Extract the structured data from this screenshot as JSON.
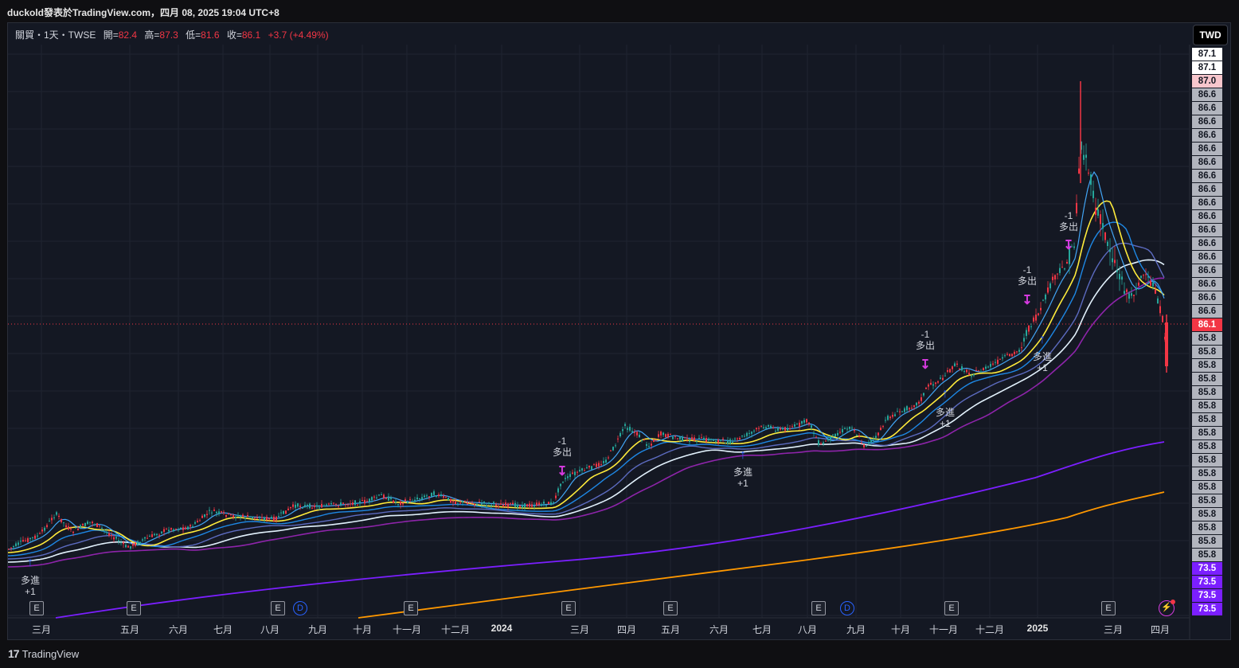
{
  "header": {
    "caption": "duckold發表於TradingView.com，四月 08, 2025 19:04 UTC+8"
  },
  "legend": {
    "symbol": "關貿・1天・TWSE",
    "open_label": "開=",
    "open_value": "82.4",
    "high_label": "高=",
    "high_value": "87.3",
    "low_label": "低=",
    "low_value": "81.6",
    "close_label": "收=",
    "close_value": "86.1",
    "change": "+3.7 (+4.49%)"
  },
  "currency_button": "TWD",
  "price_axis": {
    "labels": [
      {
        "text": "87.1",
        "style": "white"
      },
      {
        "text": "87.1",
        "style": "white"
      },
      {
        "text": "87.0",
        "style": "pink"
      },
      {
        "text": "86.6",
        "style": "grey"
      },
      {
        "text": "86.6",
        "style": "grey"
      },
      {
        "text": "86.6",
        "style": "grey"
      },
      {
        "text": "86.6",
        "style": "grey"
      },
      {
        "text": "86.6",
        "style": "grey"
      },
      {
        "text": "86.6",
        "style": "grey"
      },
      {
        "text": "86.6",
        "style": "grey"
      },
      {
        "text": "86.6",
        "style": "grey"
      },
      {
        "text": "86.6",
        "style": "grey"
      },
      {
        "text": "86.6",
        "style": "grey"
      },
      {
        "text": "86.6",
        "style": "grey"
      },
      {
        "text": "86.6",
        "style": "grey"
      },
      {
        "text": "86.6",
        "style": "grey"
      },
      {
        "text": "86.6",
        "style": "grey"
      },
      {
        "text": "86.6",
        "style": "grey"
      },
      {
        "text": "86.6",
        "style": "grey"
      },
      {
        "text": "86.6",
        "style": "grey"
      },
      {
        "text": "86.1",
        "style": "red"
      },
      {
        "text": "85.8",
        "style": "grey"
      },
      {
        "text": "85.8",
        "style": "grey"
      },
      {
        "text": "85.8",
        "style": "grey"
      },
      {
        "text": "85.8",
        "style": "grey"
      },
      {
        "text": "85.8",
        "style": "grey"
      },
      {
        "text": "85.8",
        "style": "grey"
      },
      {
        "text": "85.8",
        "style": "grey"
      },
      {
        "text": "85.8",
        "style": "grey"
      },
      {
        "text": "85.8",
        "style": "grey"
      },
      {
        "text": "85.8",
        "style": "grey"
      },
      {
        "text": "85.8",
        "style": "grey"
      },
      {
        "text": "85.8",
        "style": "grey"
      },
      {
        "text": "85.8",
        "style": "grey"
      },
      {
        "text": "85.8",
        "style": "grey"
      },
      {
        "text": "85.8",
        "style": "grey"
      },
      {
        "text": "85.8",
        "style": "grey"
      },
      {
        "text": "85.8",
        "style": "grey"
      },
      {
        "text": "73.5",
        "style": "violet"
      },
      {
        "text": "73.5",
        "style": "violet"
      },
      {
        "text": "73.5",
        "style": "violet"
      },
      {
        "text": "73.5",
        "style": "violet"
      }
    ]
  },
  "time_axis": [
    {
      "text": "三月",
      "bold": false
    },
    {
      "text": "五月",
      "bold": false
    },
    {
      "text": "六月",
      "bold": false
    },
    {
      "text": "七月",
      "bold": false
    },
    {
      "text": "八月",
      "bold": false
    },
    {
      "text": "九月",
      "bold": false
    },
    {
      "text": "十月",
      "bold": false
    },
    {
      "text": "十一月",
      "bold": false
    },
    {
      "text": "十二月",
      "bold": false
    },
    {
      "text": "2024",
      "bold": true
    },
    {
      "text": "三月",
      "bold": false
    },
    {
      "text": "四月",
      "bold": false
    },
    {
      "text": "五月",
      "bold": false
    },
    {
      "text": "六月",
      "bold": false
    },
    {
      "text": "七月",
      "bold": false
    },
    {
      "text": "八月",
      "bold": false
    },
    {
      "text": "九月",
      "bold": false
    },
    {
      "text": "十月",
      "bold": false
    },
    {
      "text": "十一月",
      "bold": false
    },
    {
      "text": "十二月",
      "bold": false
    },
    {
      "text": "2025",
      "bold": true
    },
    {
      "text": "三月",
      "bold": false
    },
    {
      "text": "四月",
      "bold": false
    }
  ],
  "events": [
    {
      "type": "E",
      "text": "E"
    },
    {
      "type": "E",
      "text": "E"
    },
    {
      "type": "E",
      "text": "E"
    },
    {
      "type": "D",
      "text": "D"
    },
    {
      "type": "E",
      "text": "E"
    },
    {
      "type": "E",
      "text": "E"
    },
    {
      "type": "E",
      "text": "E"
    },
    {
      "type": "E",
      "text": "E"
    },
    {
      "type": "D",
      "text": "D"
    },
    {
      "type": "E",
      "text": "E"
    },
    {
      "type": "E",
      "text": "E"
    }
  ],
  "signals": [
    {
      "kind": "buy",
      "line1": "多進",
      "line2": "+1"
    },
    {
      "kind": "sell",
      "line1": "-1",
      "line2": "多出"
    },
    {
      "kind": "buy",
      "line1": "多進",
      "line2": "+1"
    },
    {
      "kind": "sell",
      "line1": "-1",
      "line2": "多出"
    },
    {
      "kind": "buy",
      "line1": "多進",
      "line2": "+1"
    },
    {
      "kind": "sell",
      "line1": "-1",
      "line2": "多出"
    },
    {
      "kind": "buy",
      "line1": "多進",
      "line2": "+1"
    },
    {
      "kind": "sell",
      "line1": "-1",
      "line2": "多出"
    }
  ],
  "footer": {
    "logo": "17",
    "brand": "TradingView"
  },
  "colors": {
    "up": "#26a69a",
    "down": "#f23645",
    "ma_yellow": "#ffeb3b",
    "ma_violet": "#7b1fff",
    "ma_orange": "#ff9800",
    "ma_blue": "#42a5f5",
    "ma_white": "#ffffff"
  },
  "icons": [
    "arrow-up-icon",
    "arrow-down-icon",
    "bolt-icon",
    "tradingview-logo-icon"
  ],
  "chart_data": {
    "type": "candlestick",
    "symbol": "關貿・1天・TWSE",
    "ohlc_last": {
      "open": 82.4,
      "high": 87.3,
      "low": 81.6,
      "close": 86.1,
      "change": 3.7,
      "change_pct": 4.49
    }
  }
}
